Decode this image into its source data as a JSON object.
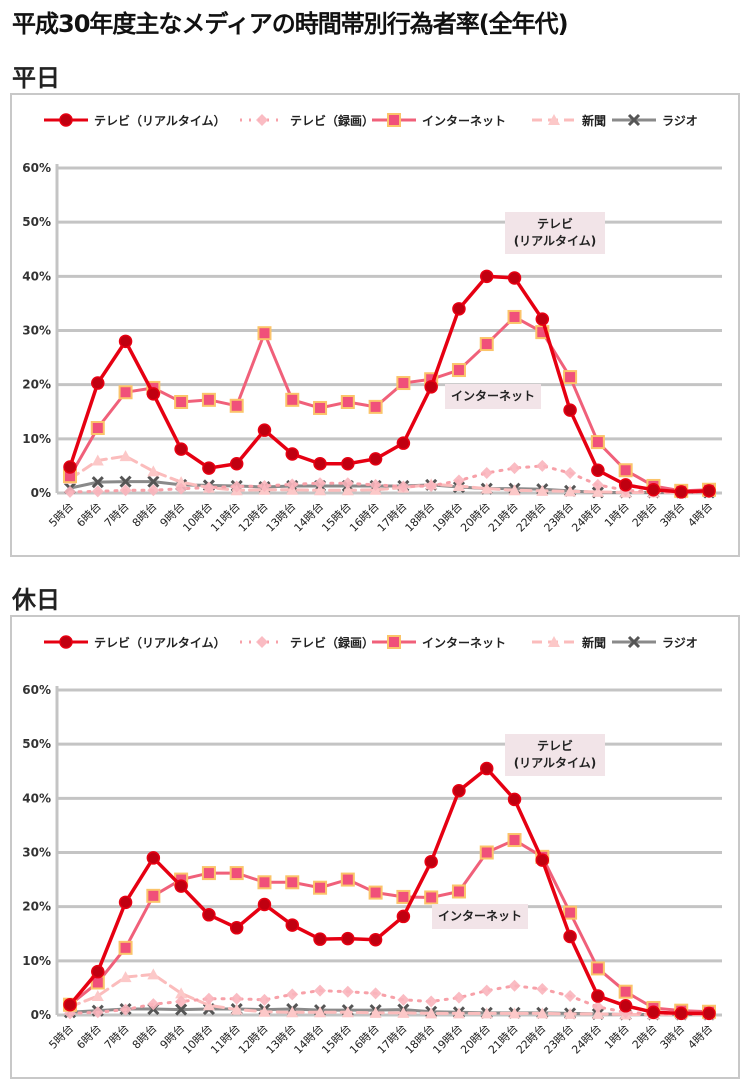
{
  "title": "平成30年度主なメディアの時間帯別行為者率(全年代)",
  "chart_data": [
    {
      "type": "line",
      "section": "平日",
      "categories": [
        "5時台",
        "6時台",
        "7時台",
        "8時台",
        "9時台",
        "10時台",
        "11時台",
        "12時台",
        "13時台",
        "14時台",
        "15時台",
        "16時台",
        "17時台",
        "18時台",
        "19時台",
        "20時台",
        "21時台",
        "22時台",
        "23時台",
        "24時台",
        "1時台",
        "2時台",
        "3時台",
        "4時台"
      ],
      "yticks": [
        "0%",
        "10%",
        "20%",
        "30%",
        "40%",
        "50%",
        "60%"
      ],
      "ylim": [
        0,
        60
      ],
      "grid": true,
      "legend": "top",
      "annotations": {
        "tv": [
          "テレビ",
          "(リアルタイム)"
        ],
        "net": "インターネット"
      },
      "series": [
        {
          "name": "テレビ（リアルタイム）",
          "color": "#e60012",
          "values": [
            4.8,
            20.3,
            28.0,
            18.3,
            8.1,
            4.6,
            5.4,
            11.6,
            7.2,
            5.4,
            5.4,
            6.3,
            9.2,
            19.6,
            34.0,
            40.0,
            39.7,
            32.1,
            15.3,
            4.2,
            1.5,
            0.6,
            0.2,
            0.4
          ]
        },
        {
          "name": "テレビ（録画）",
          "color": "#f7a0a8",
          "values": [
            0.2,
            0.3,
            0.5,
            0.5,
            0.8,
            1.0,
            1.2,
            1.3,
            1.6,
            1.8,
            1.8,
            1.5,
            1.2,
            1.3,
            2.3,
            3.7,
            4.6,
            5.0,
            3.7,
            1.5,
            0.5,
            0.2,
            0.1,
            0.1
          ]
        },
        {
          "name": "インターネット",
          "color": "#f0607a",
          "values": [
            3.1,
            12.0,
            18.6,
            19.4,
            16.8,
            17.2,
            16.1,
            29.5,
            17.2,
            15.7,
            16.8,
            15.9,
            20.3,
            21.0,
            22.7,
            27.5,
            32.5,
            29.7,
            21.4,
            9.4,
            4.2,
            1.3,
            0.4,
            0.6
          ]
        },
        {
          "name": "新聞",
          "color": "#fbbcbc",
          "values": [
            2.6,
            6.0,
            6.8,
            4.0,
            2.0,
            1.0,
            0.5,
            0.6,
            0.6,
            0.5,
            0.5,
            0.6,
            1.0,
            1.6,
            1.3,
            0.8,
            0.5,
            0.4,
            0.3,
            0.2,
            0.1,
            0.1,
            0.1,
            0.2
          ]
        },
        {
          "name": "ラジオ",
          "color": "#8a8a8a",
          "values": [
            0.9,
            2.0,
            2.1,
            2.1,
            1.5,
            1.4,
            1.3,
            1.1,
            1.3,
            1.3,
            1.3,
            1.3,
            1.3,
            1.5,
            1.1,
            0.8,
            0.8,
            0.7,
            0.4,
            0.1,
            0.1,
            0.1,
            0.1,
            0.1
          ]
        }
      ]
    },
    {
      "type": "line",
      "section": "休日",
      "categories": [
        "5時台",
        "6時台",
        "7時台",
        "8時台",
        "9時台",
        "10時台",
        "11時台",
        "12時台",
        "13時台",
        "14時台",
        "15時台",
        "16時台",
        "17時台",
        "18時台",
        "19時台",
        "20時台",
        "21時台",
        "22時台",
        "23時台",
        "24時台",
        "1時台",
        "2時台",
        "3時台",
        "4時台"
      ],
      "yticks": [
        "0%",
        "10%",
        "20%",
        "30%",
        "40%",
        "50%",
        "60%"
      ],
      "ylim": [
        0,
        60
      ],
      "grid": true,
      "legend": "top",
      "annotations": {
        "tv": [
          "テレビ",
          "(リアルタイム)"
        ],
        "net": "インターネット"
      },
      "series": [
        {
          "name": "テレビ（リアルタイム）",
          "color": "#e60012",
          "values": [
            1.9,
            8.0,
            20.8,
            29.0,
            23.8,
            18.5,
            16.1,
            20.4,
            16.6,
            14.0,
            14.1,
            13.9,
            18.2,
            28.3,
            41.4,
            45.5,
            39.8,
            28.6,
            14.5,
            3.5,
            1.7,
            0.5,
            0.3,
            0.3
          ]
        },
        {
          "name": "テレビ（録画）",
          "color": "#f7a0a8",
          "values": [
            0.3,
            0.5,
            1.0,
            2.0,
            2.5,
            3.0,
            3.0,
            2.8,
            3.8,
            4.5,
            4.3,
            4.0,
            2.8,
            2.5,
            3.2,
            4.5,
            5.4,
            4.8,
            3.5,
            1.5,
            0.5,
            0.2,
            0.2,
            0.2
          ]
        },
        {
          "name": "インターネット",
          "color": "#f0607a",
          "values": [
            1.9,
            6.0,
            12.4,
            22.0,
            25.0,
            26.2,
            26.2,
            24.5,
            24.5,
            23.5,
            25.0,
            22.6,
            21.8,
            21.7,
            22.8,
            30.0,
            32.3,
            29.2,
            18.9,
            8.6,
            4.3,
            1.3,
            0.8,
            0.6
          ]
        },
        {
          "name": "新聞",
          "color": "#fbbcbc",
          "values": [
            1.5,
            3.5,
            7.0,
            7.5,
            4.0,
            1.8,
            1.0,
            0.6,
            0.5,
            0.5,
            0.5,
            0.4,
            0.4,
            0.3,
            0.3,
            0.3,
            0.3,
            0.3,
            0.2,
            0.2,
            0.1,
            0.1,
            0.1,
            0.1
          ]
        },
        {
          "name": "ラジオ",
          "color": "#8a8a8a",
          "values": [
            0.5,
            0.8,
            1.1,
            1.1,
            1.0,
            1.1,
            1.1,
            1.0,
            1.1,
            0.9,
            0.9,
            0.9,
            1.0,
            0.6,
            0.5,
            0.4,
            0.4,
            0.4,
            0.3,
            0.2,
            0.1,
            0.1,
            0.1,
            0.1
          ]
        }
      ]
    }
  ]
}
